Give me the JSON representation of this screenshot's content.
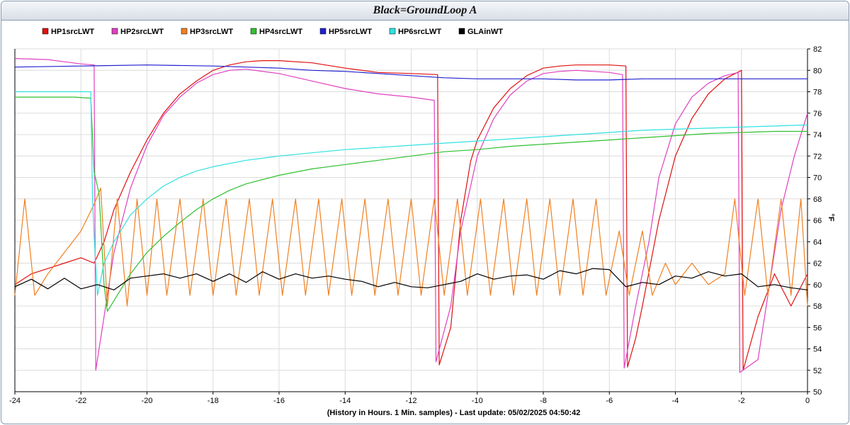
{
  "window": {
    "title": "Black=GroundLoop A"
  },
  "chart_data": {
    "type": "line",
    "title": "Black=GroundLoop A",
    "xlabel": "(History in Hours. 1 Min. samples) - Last update: 05/02/2025 04:50:42",
    "ylabel": "°F",
    "xlim": [
      -24,
      0
    ],
    "ylim": [
      50,
      82
    ],
    "x_ticks": [
      "-24",
      "-22",
      "-20",
      "-18",
      "-16",
      "-14",
      "-12",
      "-10",
      "-8",
      "-6",
      "-4",
      "-2",
      "0"
    ],
    "y_ticks": [
      "50",
      "52",
      "54",
      "56",
      "58",
      "60",
      "62",
      "64",
      "66",
      "68",
      "70",
      "72",
      "74",
      "76",
      "78",
      "80",
      "82"
    ],
    "grid": true,
    "legend_position": "top-left",
    "series": [
      {
        "name": "HP1srcLWT",
        "color": "#e01010",
        "points": [
          [
            -24,
            60
          ],
          [
            -23.5,
            61
          ],
          [
            -23,
            61.5
          ],
          [
            -22.5,
            62
          ],
          [
            -22,
            62.5
          ],
          [
            -21.6,
            62
          ],
          [
            -21.3,
            64
          ],
          [
            -21,
            67
          ],
          [
            -20.5,
            70.5
          ],
          [
            -20,
            73.5
          ],
          [
            -19.5,
            76
          ],
          [
            -19,
            77.8
          ],
          [
            -18.5,
            79
          ],
          [
            -18,
            80
          ],
          [
            -17.5,
            80.5
          ],
          [
            -17,
            80.8
          ],
          [
            -16.5,
            80.9
          ],
          [
            -16,
            80.9
          ],
          [
            -15,
            80.7
          ],
          [
            -14,
            80.2
          ],
          [
            -13,
            79.8
          ],
          [
            -12,
            79.7
          ],
          [
            -11.2,
            79.6
          ],
          [
            -11.15,
            52.5
          ],
          [
            -10.8,
            56
          ],
          [
            -10.5,
            66
          ],
          [
            -10.2,
            71.5
          ],
          [
            -10,
            73.5
          ],
          [
            -9.5,
            76.5
          ],
          [
            -9,
            78.3
          ],
          [
            -8.5,
            79.5
          ],
          [
            -8,
            80.2
          ],
          [
            -7.5,
            80.4
          ],
          [
            -7,
            80.5
          ],
          [
            -6,
            80.5
          ],
          [
            -5.5,
            80.4
          ],
          [
            -5.45,
            52.3
          ],
          [
            -5.2,
            55
          ],
          [
            -5,
            58
          ],
          [
            -4.5,
            66
          ],
          [
            -4,
            72
          ],
          [
            -3.5,
            75.5
          ],
          [
            -3,
            77.8
          ],
          [
            -2.5,
            79.2
          ],
          [
            -2,
            80
          ],
          [
            -1.95,
            52
          ],
          [
            -1.5,
            57
          ],
          [
            -1,
            61
          ],
          [
            -0.5,
            58
          ],
          [
            0,
            61
          ]
        ]
      },
      {
        "name": "HP2srcLWT",
        "color": "#e040c0",
        "points": [
          [
            -24,
            81.1
          ],
          [
            -23,
            81.0
          ],
          [
            -22.5,
            80.8
          ],
          [
            -22,
            80.6
          ],
          [
            -21.6,
            80.5
          ],
          [
            -21.55,
            52
          ],
          [
            -21.3,
            57
          ],
          [
            -21,
            63
          ],
          [
            -20.5,
            69
          ],
          [
            -20,
            73
          ],
          [
            -19.5,
            75.8
          ],
          [
            -19,
            77.5
          ],
          [
            -18.5,
            78.8
          ],
          [
            -18,
            79.6
          ],
          [
            -17.5,
            80
          ],
          [
            -17,
            80.1
          ],
          [
            -16,
            79.7
          ],
          [
            -15,
            79
          ],
          [
            -14,
            78.3
          ],
          [
            -13,
            77.8
          ],
          [
            -12,
            77.5
          ],
          [
            -11.3,
            77.2
          ],
          [
            -11.25,
            52.8
          ],
          [
            -10.8,
            58
          ],
          [
            -10.5,
            65
          ],
          [
            -10,
            72
          ],
          [
            -9.5,
            75.5
          ],
          [
            -9,
            77.7
          ],
          [
            -8.5,
            79
          ],
          [
            -8,
            79.7
          ],
          [
            -7.5,
            79.9
          ],
          [
            -7,
            80
          ],
          [
            -6,
            79.8
          ],
          [
            -5.6,
            79.6
          ],
          [
            -5.55,
            52.2
          ],
          [
            -5.2,
            58
          ],
          [
            -4.8,
            64
          ],
          [
            -4.5,
            70
          ],
          [
            -4,
            75
          ],
          [
            -3.5,
            77.5
          ],
          [
            -3,
            78.8
          ],
          [
            -2.5,
            79.5
          ],
          [
            -2.1,
            79.8
          ],
          [
            -2.05,
            51.8
          ],
          [
            -1.5,
            53
          ],
          [
            -1.2,
            59
          ],
          [
            -0.8,
            67
          ],
          [
            -0.4,
            72
          ],
          [
            0,
            76
          ]
        ]
      },
      {
        "name": "HP3srcLWT",
        "color": "#f08020",
        "points": [
          [
            -24,
            59
          ],
          [
            -23.7,
            68
          ],
          [
            -23.4,
            59
          ],
          [
            -23,
            61
          ],
          [
            -22.5,
            63
          ],
          [
            -22,
            65
          ],
          [
            -21.6,
            67.5
          ],
          [
            -21.4,
            69
          ],
          [
            -21.2,
            58
          ],
          [
            -20.9,
            68
          ],
          [
            -20.6,
            58
          ],
          [
            -20.3,
            68
          ],
          [
            -20,
            59
          ],
          [
            -19.7,
            68
          ],
          [
            -19.4,
            59
          ],
          [
            -19,
            68
          ],
          [
            -18.7,
            59
          ],
          [
            -18.3,
            68
          ],
          [
            -18,
            59
          ],
          [
            -17.6,
            68
          ],
          [
            -17.3,
            59
          ],
          [
            -16.9,
            68
          ],
          [
            -16.6,
            59
          ],
          [
            -16.2,
            68
          ],
          [
            -15.9,
            59
          ],
          [
            -15.5,
            68
          ],
          [
            -15.2,
            59
          ],
          [
            -14.8,
            68
          ],
          [
            -14.5,
            59
          ],
          [
            -14.1,
            68
          ],
          [
            -13.8,
            59
          ],
          [
            -13.4,
            68
          ],
          [
            -13.1,
            59
          ],
          [
            -12.7,
            68
          ],
          [
            -12.4,
            59
          ],
          [
            -12,
            68
          ],
          [
            -11.7,
            59
          ],
          [
            -11.3,
            68
          ],
          [
            -11,
            59
          ],
          [
            -10.6,
            68
          ],
          [
            -10.3,
            59
          ],
          [
            -9.9,
            68
          ],
          [
            -9.6,
            59
          ],
          [
            -9.2,
            68
          ],
          [
            -8.9,
            59
          ],
          [
            -8.5,
            68
          ],
          [
            -8.2,
            59
          ],
          [
            -7.8,
            68
          ],
          [
            -7.5,
            59
          ],
          [
            -7.1,
            68
          ],
          [
            -6.8,
            59
          ],
          [
            -6.4,
            68
          ],
          [
            -6.1,
            59
          ],
          [
            -5.7,
            65
          ],
          [
            -5.4,
            59
          ],
          [
            -5,
            65
          ],
          [
            -4.7,
            59
          ],
          [
            -4.3,
            62
          ],
          [
            -4,
            60
          ],
          [
            -3.5,
            62
          ],
          [
            -3,
            60
          ],
          [
            -2.5,
            61
          ],
          [
            -2.2,
            68
          ],
          [
            -1.9,
            59
          ],
          [
            -1.5,
            68
          ],
          [
            -1.2,
            59
          ],
          [
            -0.8,
            68
          ],
          [
            -0.5,
            59
          ],
          [
            -0.2,
            68
          ],
          [
            0,
            58
          ]
        ]
      },
      {
        "name": "HP4srcLWT",
        "color": "#30c030",
        "points": [
          [
            -24,
            77.5
          ],
          [
            -23,
            77.5
          ],
          [
            -22.2,
            77.5
          ],
          [
            -21.7,
            77.4
          ],
          [
            -21.6,
            70.5
          ],
          [
            -21.45,
            68.5
          ],
          [
            -21.3,
            60
          ],
          [
            -21.2,
            57.5
          ],
          [
            -21,
            58.5
          ],
          [
            -20.5,
            61
          ],
          [
            -20,
            63
          ],
          [
            -19.5,
            64.5
          ],
          [
            -19,
            65.8
          ],
          [
            -18.5,
            67
          ],
          [
            -18,
            68
          ],
          [
            -17.5,
            68.8
          ],
          [
            -17,
            69.4
          ],
          [
            -16.5,
            69.8
          ],
          [
            -16,
            70.2
          ],
          [
            -15,
            70.8
          ],
          [
            -14,
            71.2
          ],
          [
            -13,
            71.6
          ],
          [
            -12,
            72
          ],
          [
            -11,
            72.4
          ],
          [
            -10,
            72.6
          ],
          [
            -9,
            72.9
          ],
          [
            -8,
            73.1
          ],
          [
            -7,
            73.3
          ],
          [
            -6,
            73.5
          ],
          [
            -5,
            73.7
          ],
          [
            -4,
            73.9
          ],
          [
            -3,
            74.1
          ],
          [
            -2,
            74.2
          ],
          [
            -1,
            74.3
          ],
          [
            0,
            74.3
          ]
        ]
      },
      {
        "name": "HP5srcLWT",
        "color": "#2020d0",
        "points": [
          [
            -24,
            80.3
          ],
          [
            -22,
            80.4
          ],
          [
            -20,
            80.5
          ],
          [
            -18,
            80.4
          ],
          [
            -17,
            80.3
          ],
          [
            -16,
            80.2
          ],
          [
            -15,
            80
          ],
          [
            -14,
            79.9
          ],
          [
            -13,
            79.7
          ],
          [
            -12,
            79.5
          ],
          [
            -11,
            79.3
          ],
          [
            -10,
            79.2
          ],
          [
            -9,
            79.2
          ],
          [
            -8,
            79.2
          ],
          [
            -7,
            79.1
          ],
          [
            -6,
            79.1
          ],
          [
            -5,
            79.2
          ],
          [
            -4,
            79.2
          ],
          [
            -3,
            79.2
          ],
          [
            -2,
            79.2
          ],
          [
            -1,
            79.2
          ],
          [
            0,
            79.2
          ]
        ]
      },
      {
        "name": "HP6srcLWT",
        "color": "#30e0e0",
        "points": [
          [
            -24,
            78
          ],
          [
            -23,
            78
          ],
          [
            -22.2,
            78
          ],
          [
            -21.7,
            78
          ],
          [
            -21.65,
            68
          ],
          [
            -21.6,
            64.5
          ],
          [
            -21.5,
            59
          ],
          [
            -21.3,
            62
          ],
          [
            -21,
            64
          ],
          [
            -20.5,
            66.5
          ],
          [
            -20,
            68
          ],
          [
            -19.5,
            69.2
          ],
          [
            -19,
            70
          ],
          [
            -18.5,
            70.6
          ],
          [
            -18,
            71
          ],
          [
            -17,
            71.6
          ],
          [
            -16,
            72
          ],
          [
            -15,
            72.3
          ],
          [
            -14,
            72.6
          ],
          [
            -13,
            72.8
          ],
          [
            -12,
            73
          ],
          [
            -11,
            73.2
          ],
          [
            -10,
            73.4
          ],
          [
            -9,
            73.6
          ],
          [
            -8,
            73.8
          ],
          [
            -7,
            74
          ],
          [
            -6,
            74.2
          ],
          [
            -5,
            74.4
          ],
          [
            -4,
            74.5
          ],
          [
            -3,
            74.6
          ],
          [
            -2,
            74.7
          ],
          [
            -1,
            74.8
          ],
          [
            0,
            74.9
          ]
        ]
      },
      {
        "name": "GLAinWT",
        "color": "#000000",
        "points": [
          [
            -24,
            59.8
          ],
          [
            -23.5,
            60.5
          ],
          [
            -23,
            59.6
          ],
          [
            -22.5,
            60.6
          ],
          [
            -22,
            59.6
          ],
          [
            -21.5,
            60
          ],
          [
            -21,
            59.5
          ],
          [
            -20.5,
            60.6
          ],
          [
            -20,
            60.8
          ],
          [
            -19.5,
            61
          ],
          [
            -19,
            60.6
          ],
          [
            -18.5,
            61
          ],
          [
            -18,
            60.3
          ],
          [
            -17.5,
            61
          ],
          [
            -17,
            60.2
          ],
          [
            -16.5,
            61.2
          ],
          [
            -16,
            60.5
          ],
          [
            -15.5,
            61
          ],
          [
            -15,
            60.6
          ],
          [
            -14.5,
            60.8
          ],
          [
            -14,
            60.5
          ],
          [
            -13.5,
            60.3
          ],
          [
            -13,
            59.8
          ],
          [
            -12.5,
            60.2
          ],
          [
            -12,
            59.8
          ],
          [
            -11.5,
            59.7
          ],
          [
            -11,
            60
          ],
          [
            -10.5,
            60.3
          ],
          [
            -10,
            61
          ],
          [
            -9.5,
            60.5
          ],
          [
            -9,
            60.8
          ],
          [
            -8.5,
            60.9
          ],
          [
            -8,
            60.5
          ],
          [
            -7.5,
            61.3
          ],
          [
            -7,
            61
          ],
          [
            -6.5,
            61.5
          ],
          [
            -6,
            61.4
          ],
          [
            -5.5,
            59.8
          ],
          [
            -5,
            60.2
          ],
          [
            -4.5,
            60
          ],
          [
            -4,
            60.8
          ],
          [
            -3.5,
            60.6
          ],
          [
            -3,
            61.2
          ],
          [
            -2.5,
            60.8
          ],
          [
            -2,
            61
          ],
          [
            -1.5,
            59.8
          ],
          [
            -1,
            60
          ],
          [
            -0.5,
            59.7
          ],
          [
            0,
            59.5
          ]
        ]
      }
    ]
  }
}
